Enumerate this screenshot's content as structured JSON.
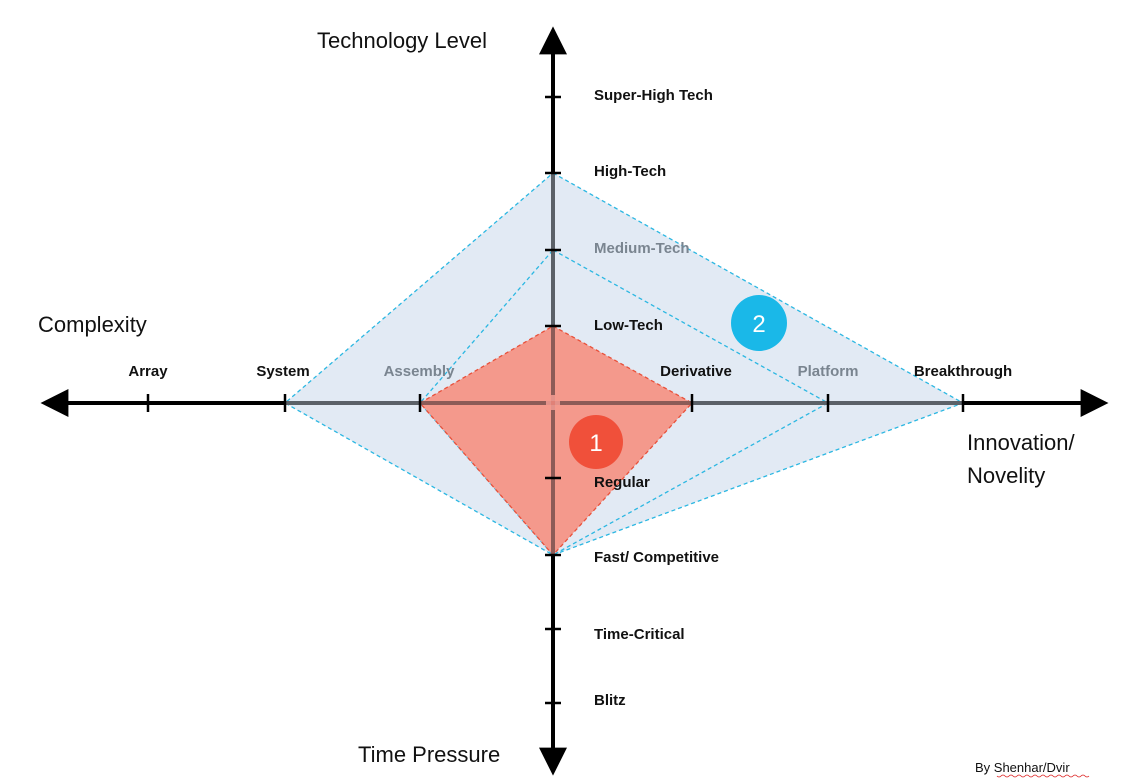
{
  "axes": {
    "technology_title": "Technology Level",
    "complexity_title": "Complexity",
    "novelty_title_line1": "Innovation/",
    "novelty_title_line2": "Novelity",
    "pace_title": "Time Pressure"
  },
  "technology_levels": [
    "Super-High Tech",
    "High-Tech",
    "Medium-Tech",
    "Low-Tech"
  ],
  "complexity_levels": [
    "Array",
    "System",
    "Assembly"
  ],
  "novelty_levels": [
    "Derivative",
    "Platform",
    "Breakthrough"
  ],
  "pace_levels": [
    "Regular",
    "Fast/ Competitive",
    "Time-Critical",
    "Blitz"
  ],
  "projects": [
    {
      "id": "1",
      "technology": "Low-Tech",
      "complexity": "Assembly",
      "novelty": "Derivative",
      "pace": "Fast/ Competitive",
      "fill": "#f4998c",
      "stroke": "#e8503a",
      "badge_color": "#f0503a"
    },
    {
      "id": "2",
      "technology": "High-Tech",
      "complexity": "System",
      "novelty": "Breakthrough",
      "pace": "Fast/ Competitive",
      "fill": "#dfe8f3",
      "stroke": "#2bb7e2",
      "badge_color": "#1ab8e8"
    },
    {
      "id": "",
      "technology": "Medium-Tech",
      "complexity": "Assembly",
      "novelty": "Platform",
      "pace": "Fast/ Competitive",
      "stroke": "#2bb7e2"
    }
  ],
  "credit": "By Shenhar/Dvir",
  "colors": {
    "axis": "#000000",
    "grey_label": "#7a8590"
  }
}
